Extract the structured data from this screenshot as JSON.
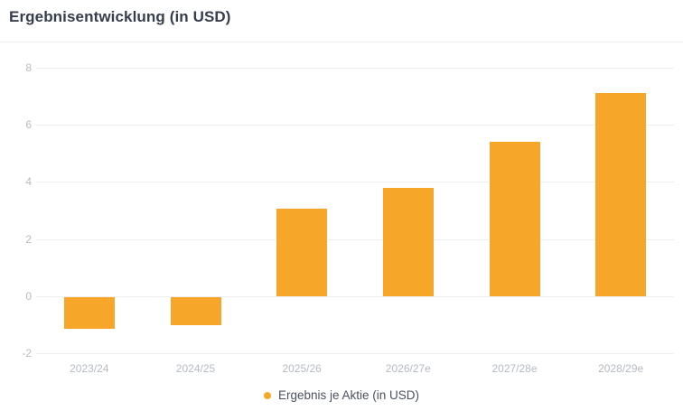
{
  "header": {
    "title": "Ergebnisentwicklung (in USD)"
  },
  "legend": {
    "label": "Ergebnis je Aktie (in USD)"
  },
  "colors": {
    "bar": "#f6a72a",
    "grid": "#eceef1",
    "axis_label": "#b5bbc5",
    "title": "#363e4d",
    "legend_text": "#4a5160",
    "divider": "#e9ebee",
    "background": "#ffffff"
  },
  "chart_data": {
    "type": "bar",
    "title": "Ergebnisentwicklung (in USD)",
    "categories": [
      "2023/24",
      "2024/25",
      "2025/26",
      "2026/27e",
      "2027/28e",
      "2028/29e"
    ],
    "series": [
      {
        "name": "Ergebnis je Aktie (in USD)",
        "values": [
          -1.1,
          -1.0,
          3.05,
          3.8,
          5.4,
          7.1
        ]
      }
    ],
    "xlabel": "",
    "ylabel": "",
    "ylim": [
      -2,
      8
    ],
    "ytick_step": 2,
    "yticks": [
      -2,
      0,
      2,
      4,
      6,
      8
    ],
    "grid": true,
    "legend_position": "bottom",
    "bar_color": "#f6a72a"
  }
}
